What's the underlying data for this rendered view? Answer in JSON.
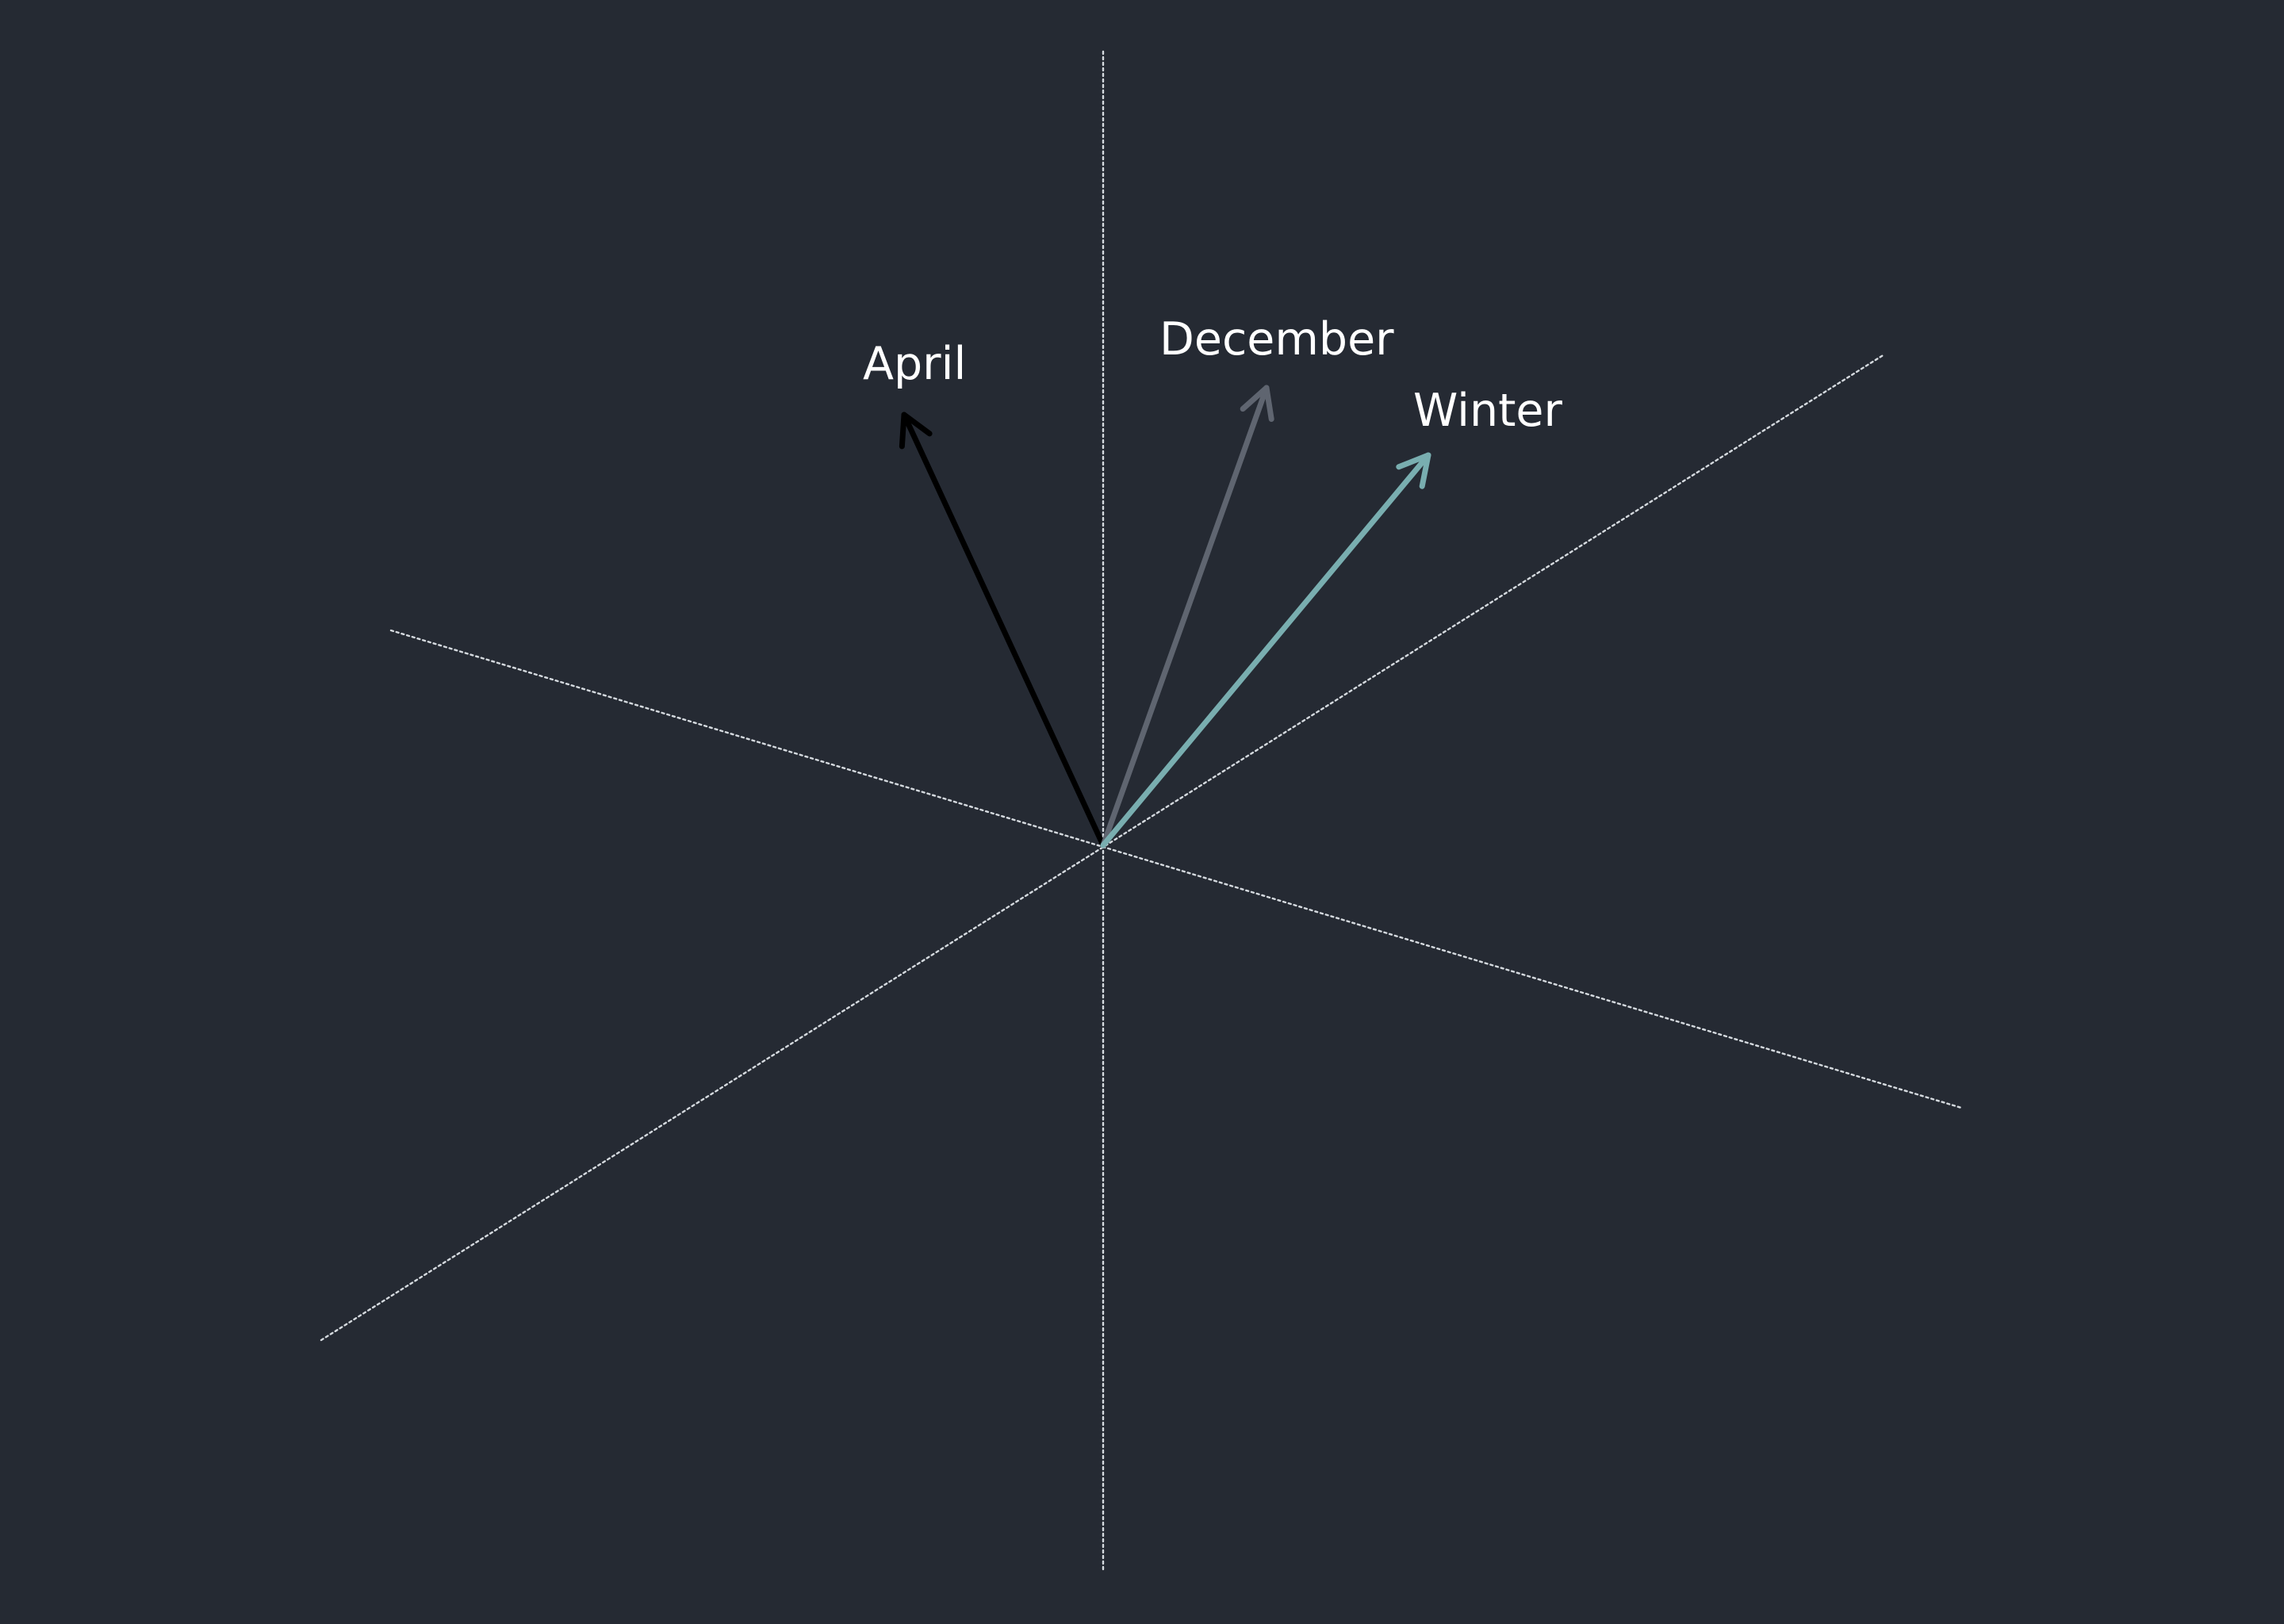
{
  "diagram": {
    "background_color": "#252a33",
    "axis_color": "#e9edf2",
    "vectors": [
      {
        "label": "April",
        "color": "#000000"
      },
      {
        "label": "December",
        "color": "#5f6570"
      },
      {
        "label": "Winter",
        "color": "#79aeb0"
      }
    ]
  }
}
